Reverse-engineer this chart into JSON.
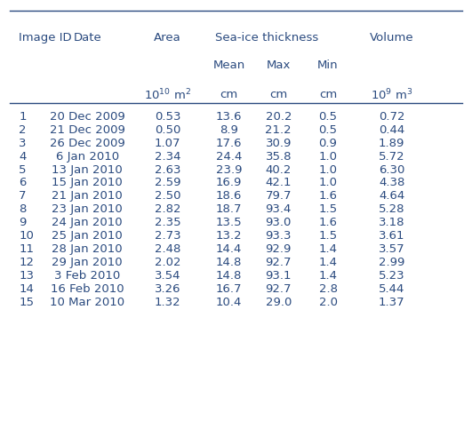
{
  "col_headers_row1": [
    "Image ID",
    "Date",
    "Area",
    "Sea-ice thickness",
    "",
    "",
    "Volume"
  ],
  "col_headers_row2": [
    "",
    "",
    "",
    "Mean",
    "Max",
    "Min",
    ""
  ],
  "col_headers_row3": [
    "",
    "",
    "10¹⁰ m²",
    "cm",
    "cm",
    "cm",
    "10⁹ m³"
  ],
  "rows": [
    [
      "1",
      "20 Dec 2009",
      "0.53",
      "13.6",
      "20.2",
      "0.5",
      "0.72"
    ],
    [
      "2",
      "21 Dec 2009",
      "0.50",
      "8.9",
      "21.2",
      "0.5",
      "0.44"
    ],
    [
      "3",
      "26 Dec 2009",
      "1.07",
      "17.6",
      "30.9",
      "0.9",
      "1.89"
    ],
    [
      "4",
      "6 Jan 2010",
      "2.34",
      "24.4",
      "35.8",
      "1.0",
      "5.72"
    ],
    [
      "5",
      "13 Jan 2010",
      "2.63",
      "23.9",
      "40.2",
      "1.0",
      "6.30"
    ],
    [
      "6",
      "15 Jan 2010",
      "2.59",
      "16.9",
      "42.1",
      "1.0",
      "4.38"
    ],
    [
      "7",
      "21 Jan 2010",
      "2.50",
      "18.6",
      "79.7",
      "1.6",
      "4.64"
    ],
    [
      "8",
      "23 Jan 2010",
      "2.82",
      "18.7",
      "93.4",
      "1.5",
      "5.28"
    ],
    [
      "9",
      "24 Jan 2010",
      "2.35",
      "13.5",
      "93.0",
      "1.6",
      "3.18"
    ],
    [
      "10",
      "25 Jan 2010",
      "2.73",
      "13.2",
      "93.3",
      "1.5",
      "3.61"
    ],
    [
      "11",
      "28 Jan 2010",
      "2.48",
      "14.4",
      "92.9",
      "1.4",
      "3.57"
    ],
    [
      "12",
      "29 Jan 2010",
      "2.02",
      "14.8",
      "92.7",
      "1.4",
      "2.99"
    ],
    [
      "13",
      "3 Feb 2010",
      "3.54",
      "14.8",
      "93.1",
      "1.4",
      "5.23"
    ],
    [
      "14",
      "16 Feb 2010",
      "3.26",
      "16.7",
      "92.7",
      "2.8",
      "5.44"
    ],
    [
      "15",
      "10 Mar 2010",
      "1.32",
      "10.4",
      "29.0",
      "2.0",
      "1.37"
    ]
  ],
  "text_color": "#2a4a7f",
  "bg_color": "#ffffff",
  "line_color": "#2a4a7f",
  "fontsize": 9.5
}
